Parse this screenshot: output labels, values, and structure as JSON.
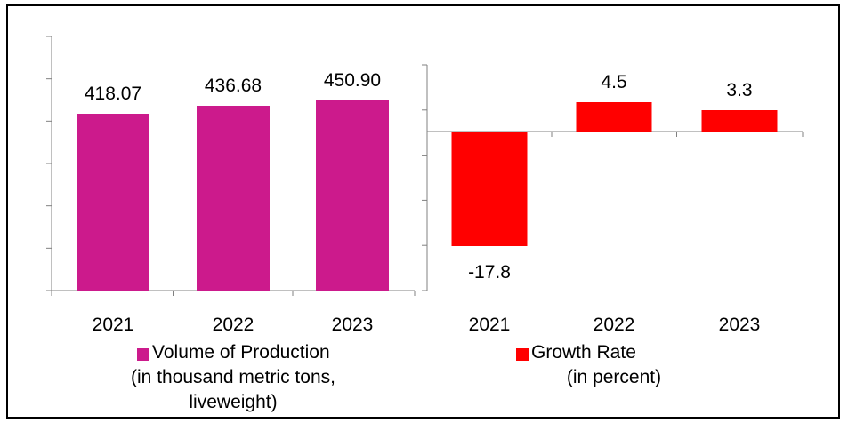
{
  "chart_data": [
    {
      "type": "bar",
      "categories": [
        "2021",
        "2022",
        "2023"
      ],
      "series": [
        {
          "name": "Volume of Production\n(in thousand metric tons,\nliveweight)",
          "values": [
            418.07,
            436.68,
            450.9
          ],
          "color": "#cc1a8c"
        }
      ],
      "data_labels": [
        "418.07",
        "436.68",
        "450.90"
      ],
      "legend": {
        "lines": [
          "Volume of Production",
          "(in thousand metric tons,",
          "liveweight)"
        ],
        "position": "bottom"
      },
      "ylim": [
        0,
        600
      ],
      "grid": false
    },
    {
      "type": "bar",
      "categories": [
        "2021",
        "2022",
        "2023"
      ],
      "series": [
        {
          "name": "Growth Rate\n(in percent)",
          "values": [
            -17.8,
            4.5,
            3.3
          ],
          "color": "#ff0000"
        }
      ],
      "data_labels": [
        "-17.8",
        "4.5",
        "3.3"
      ],
      "legend": {
        "lines": [
          "Growth Rate",
          "(in percent)"
        ],
        "position": "bottom"
      },
      "ylim": [
        -25,
        10
      ],
      "grid": false
    }
  ]
}
